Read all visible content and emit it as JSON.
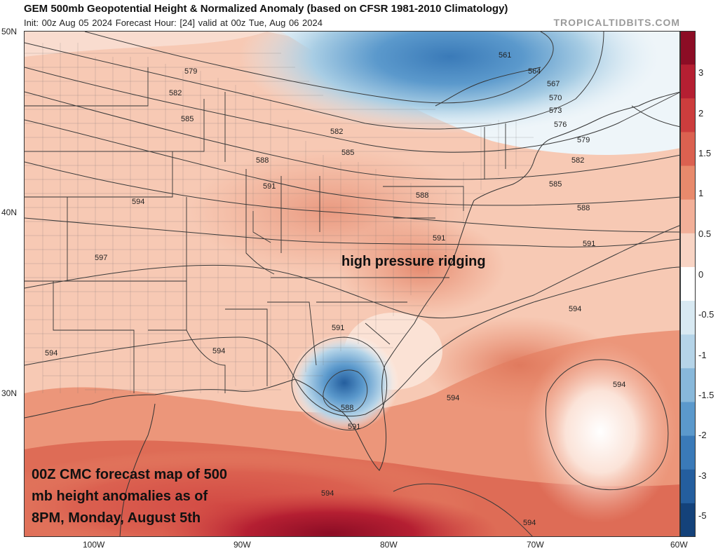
{
  "header": {
    "title": "GEM 500mb Geopotential Height & Normalized Anomaly (based on CFSR 1981-2010 Climatology)",
    "subtitle": "Init: 00z Aug 05 2024   Forecast Hour: [24]   valid at 00z Tue, Aug 06 2024",
    "brand": "TROPICALTIDBITS.COM"
  },
  "axes": {
    "lat_labels": [
      "50N",
      "40N",
      "30N"
    ],
    "lon_labels": [
      "100W",
      "90W",
      "80W",
      "70W",
      "60W"
    ]
  },
  "colorbar": {
    "labels": [
      "3",
      "2",
      "1.5",
      "1",
      "0.5",
      "0",
      "-0.5",
      "-1",
      "-1.5",
      "-2",
      "-3",
      "-5"
    ],
    "colors": [
      "#8c0d25",
      "#b51f32",
      "#cc3d3d",
      "#db6150",
      "#e88a6c",
      "#f2b099",
      "#f8d4c4",
      "#ffffff",
      "#d8e9f2",
      "#b5d4e8",
      "#88b8da",
      "#5b99cc",
      "#3a7ab8",
      "#245e9e",
      "#14427a"
    ]
  },
  "contours": {
    "labels": [
      "561",
      "564",
      "567",
      "570",
      "573",
      "576",
      "579",
      "582",
      "585",
      "588",
      "591",
      "594",
      "597"
    ],
    "map_labels": [
      "579",
      "582",
      "585",
      "588",
      "591",
      "594",
      "597",
      "582",
      "585",
      "588",
      "591",
      "594",
      "561",
      "564",
      "567",
      "570",
      "573",
      "576",
      "579",
      "582",
      "585",
      "588",
      "591",
      "594",
      "594",
      "594",
      "594",
      "594",
      "591",
      "588",
      "591",
      "594"
    ]
  },
  "annotations": {
    "ridging": "high pressure ridging",
    "caption_line1": "00Z CMC forecast map of 500",
    "caption_line2": "mb height anomalies as of",
    "caption_line3": "8PM, Monday, August 5th"
  }
}
